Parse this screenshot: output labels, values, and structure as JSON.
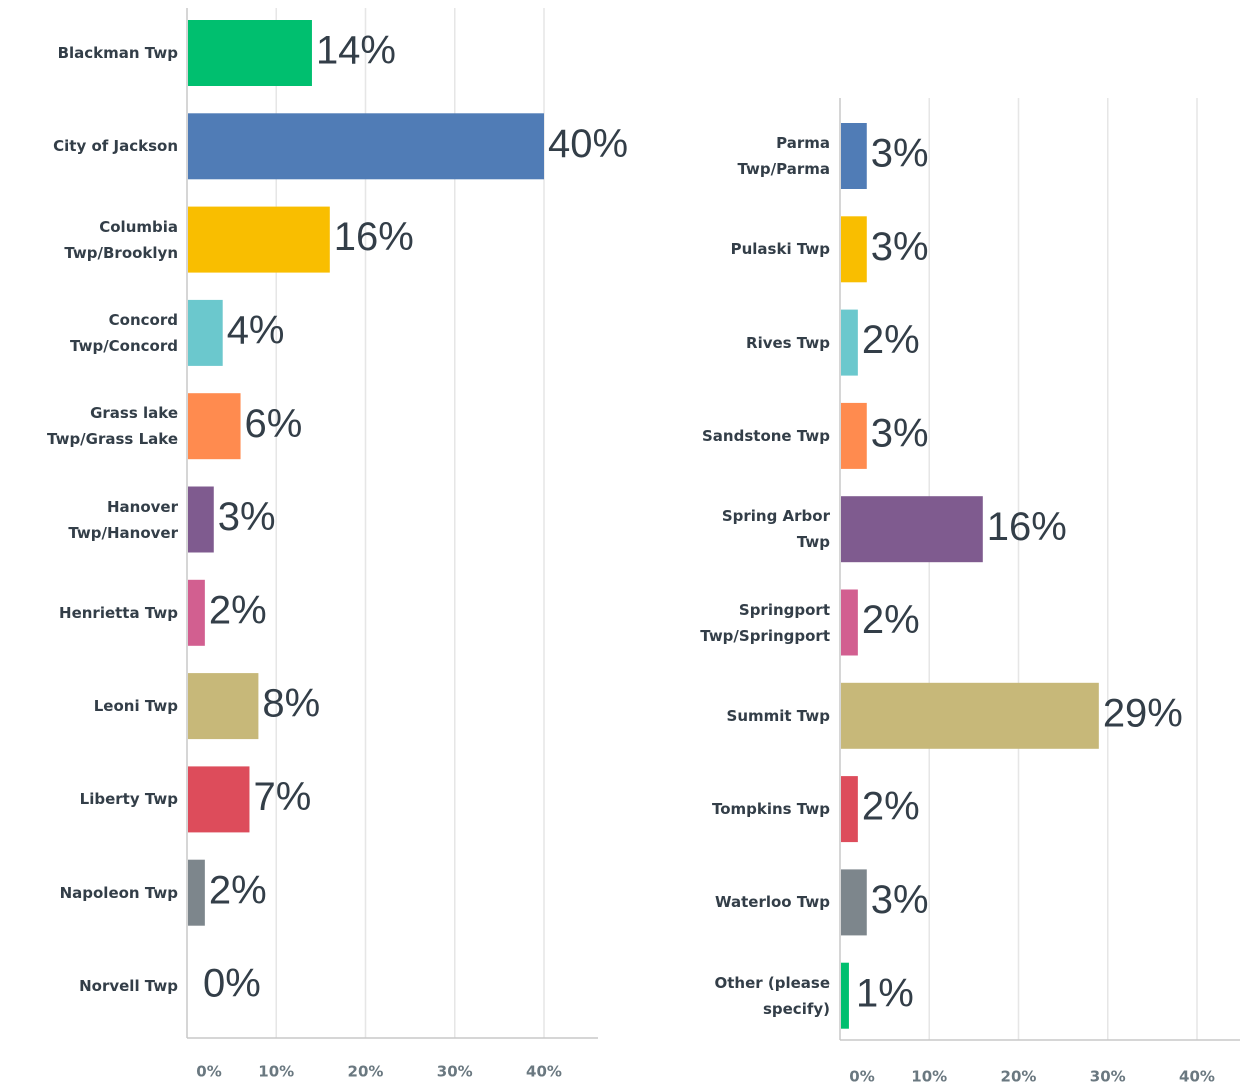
{
  "chart_data": [
    {
      "type": "bar",
      "orientation": "horizontal",
      "categories": [
        "Blackman Twp",
        "City of Jackson",
        "Columbia\nTwp/Brooklyn",
        "Concord\nTwp/Concord",
        "Grass lake\nTwp/Grass Lake",
        "Hanover\nTwp/Hanover",
        "Henrietta Twp",
        "Leoni Twp",
        "Liberty Twp",
        "Napoleon Twp",
        "Norvell Twp"
      ],
      "values": [
        14,
        40,
        16,
        4,
        6,
        3,
        2,
        8,
        7,
        2,
        0
      ],
      "value_labels": [
        "14%",
        "40%",
        "16%",
        "4%",
        "6%",
        "3%",
        "2%",
        "8%",
        "7%",
        "2%",
        "0%"
      ],
      "colors": [
        "#00bf6f",
        "#507cb6",
        "#f9be00",
        "#6bc8cd",
        "#ff8b4f",
        "#7f5b8f",
        "#d25f90",
        "#c7b879",
        "#dd4c5b",
        "#7d868c",
        "#00bf6f"
      ],
      "xlim": [
        0,
        46
      ],
      "xticks": [
        {
          "value": 0,
          "label": "0%"
        },
        {
          "value": 10,
          "label": "10%"
        },
        {
          "value": 20,
          "label": "20%"
        },
        {
          "value": 30,
          "label": "30%"
        },
        {
          "value": 40,
          "label": "40%"
        }
      ],
      "grid": true
    },
    {
      "type": "bar",
      "orientation": "horizontal",
      "categories": [
        "Parma\nTwp/Parma",
        "Pulaski Twp",
        "Rives Twp",
        "Sandstone Twp",
        "Spring Arbor\nTwp",
        "Springport\nTwp/Springport",
        "Summit Twp",
        "Tompkins Twp",
        "Waterloo Twp",
        "Other (please\nspecify)"
      ],
      "values": [
        3,
        3,
        2,
        3,
        16,
        2,
        29,
        2,
        3,
        1
      ],
      "value_labels": [
        "3%",
        "3%",
        "2%",
        "3%",
        "16%",
        "2%",
        "29%",
        "2%",
        "3%",
        "1%"
      ],
      "colors": [
        "#507cb6",
        "#f9be00",
        "#6bc8cd",
        "#ff8b4f",
        "#7f5b8f",
        "#d25f90",
        "#c7b879",
        "#dd4c5b",
        "#7d868c",
        "#00bf6f"
      ],
      "xlim": [
        0,
        45
      ],
      "xticks": [
        {
          "value": 0,
          "label": "0%"
        },
        {
          "value": 10,
          "label": "10%"
        },
        {
          "value": 20,
          "label": "20%"
        },
        {
          "value": 30,
          "label": "30%"
        },
        {
          "value": 40,
          "label": "40%"
        }
      ],
      "grid": true
    }
  ]
}
